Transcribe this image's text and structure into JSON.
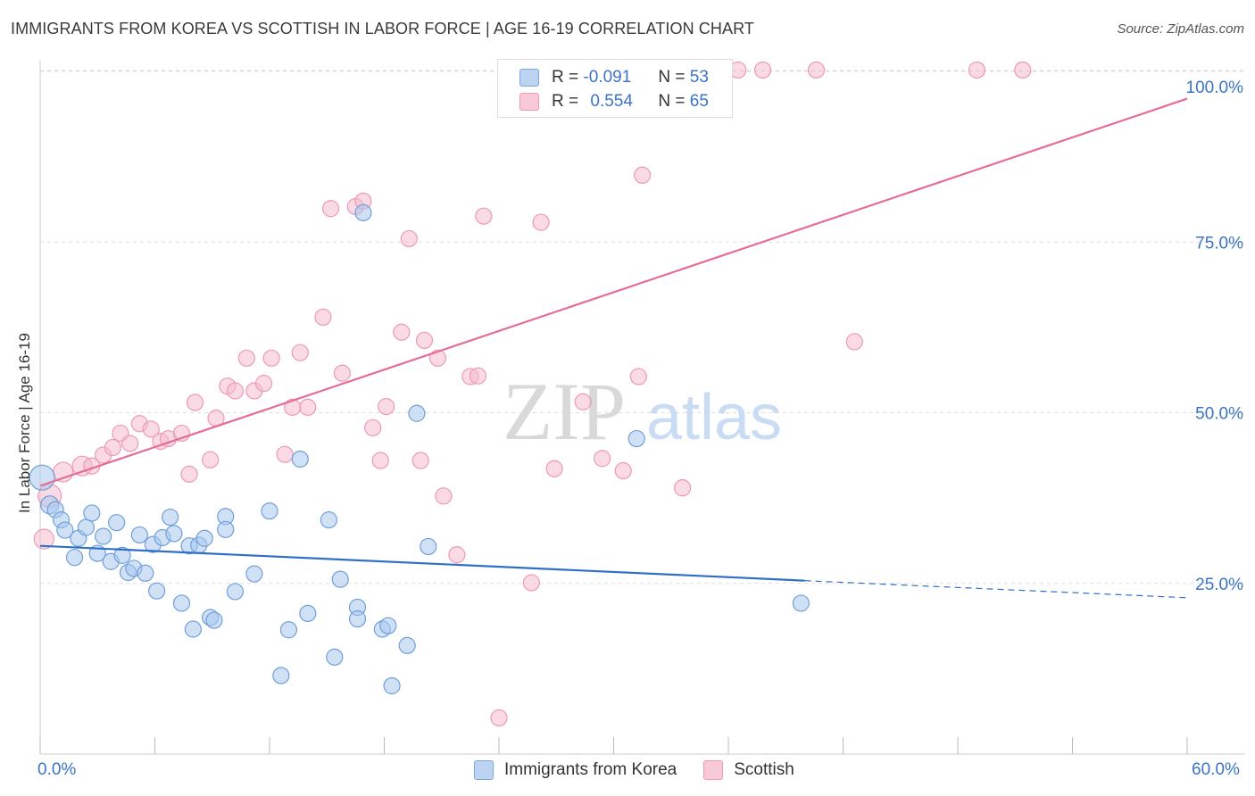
{
  "header": {
    "title": "IMMIGRANTS FROM KOREA VS SCOTTISH IN LABOR FORCE | AGE 16-19 CORRELATION CHART",
    "source": "Source: ZipAtlas.com"
  },
  "watermark": {
    "zip": "ZIP",
    "atlas": "atlas"
  },
  "legend": {
    "korea": {
      "r_label": "R =",
      "r_value": "-0.091",
      "n_label": "N =",
      "n_value": "53"
    },
    "scottish": {
      "r_label": "R =",
      "r_value": "0.554",
      "n_label": "N =",
      "n_value": "65"
    }
  },
  "colors": {
    "korea_fill": "#a9c8ef",
    "korea_stroke": "#6f9fd8",
    "korea_line": "#2f6fc9",
    "scottish_fill": "#f6bccd",
    "scottish_stroke": "#ec9ab4",
    "scottish_line": "#e56d94",
    "axis_text": "#3b74c7",
    "grid": "#dddddd"
  },
  "chart_data": {
    "type": "scatter",
    "title": "IMMIGRANTS FROM KOREA VS SCOTTISH IN LABOR FORCE | AGE 16-19 CORRELATION CHART",
    "xlabel": "",
    "ylabel": "In Labor Force | Age 16-19",
    "xlim": [
      0,
      60
    ],
    "ylim": [
      0,
      104
    ],
    "x_tick_labels": [
      "0.0%",
      "60.0%"
    ],
    "y_ticks": [
      25,
      50,
      75,
      100
    ],
    "y_tick_labels": [
      "25.0%",
      "50.0%",
      "75.0%",
      "100.0%"
    ],
    "grid": true,
    "legend_position": "top-center",
    "series": [
      {
        "name": "Immigrants from Korea",
        "legend_label": "Immigrants from Korea",
        "trend": {
          "x0": 0,
          "y0": 30.5,
          "x1": 40,
          "y1": 25.4,
          "dashed_to_x": 60,
          "dashed_to_y": 22.9
        },
        "points": [
          [
            0.1,
            40.5,
            14
          ],
          [
            0.5,
            36.5,
            10
          ],
          [
            0.8,
            35.8,
            9
          ],
          [
            1.1,
            34.3,
            9
          ],
          [
            1.3,
            32.8,
            9
          ],
          [
            1.8,
            28.8,
            9
          ],
          [
            2.0,
            31.6,
            9
          ],
          [
            2.4,
            33.2,
            9
          ],
          [
            2.7,
            35.3,
            9
          ],
          [
            3.0,
            29.4,
            9
          ],
          [
            3.3,
            31.9,
            9
          ],
          [
            3.7,
            28.2,
            9
          ],
          [
            4.0,
            33.9,
            9
          ],
          [
            4.3,
            29.1,
            9
          ],
          [
            4.6,
            26.6,
            9
          ],
          [
            4.9,
            27.2,
            9
          ],
          [
            5.2,
            32.1,
            9
          ],
          [
            5.5,
            26.5,
            9
          ],
          [
            5.9,
            30.7,
            9
          ],
          [
            6.1,
            23.9,
            9
          ],
          [
            6.4,
            31.7,
            9
          ],
          [
            6.8,
            34.7,
            9
          ],
          [
            7.0,
            32.3,
            9
          ],
          [
            7.4,
            22.1,
            9
          ],
          [
            7.8,
            30.5,
            9
          ],
          [
            8.0,
            18.3,
            9
          ],
          [
            8.3,
            30.6,
            9
          ],
          [
            8.6,
            31.6,
            9
          ],
          [
            8.9,
            20.0,
            9
          ],
          [
            9.1,
            19.6,
            9
          ],
          [
            9.7,
            34.8,
            9
          ],
          [
            9.7,
            32.9,
            9
          ],
          [
            10.2,
            23.8,
            9
          ],
          [
            11.2,
            26.4,
            9
          ],
          [
            12.0,
            35.6,
            9
          ],
          [
            12.6,
            11.5,
            9
          ],
          [
            13.0,
            18.2,
            9
          ],
          [
            13.6,
            43.2,
            9
          ],
          [
            14.0,
            20.6,
            9
          ],
          [
            15.1,
            34.3,
            9
          ],
          [
            15.4,
            14.2,
            9
          ],
          [
            15.7,
            25.6,
            9
          ],
          [
            16.6,
            21.5,
            9
          ],
          [
            16.6,
            19.8,
            9
          ],
          [
            16.9,
            79.3,
            9
          ],
          [
            17.9,
            18.3,
            9
          ],
          [
            18.2,
            18.8,
            9
          ],
          [
            18.4,
            10.0,
            9
          ],
          [
            19.2,
            15.9,
            9
          ],
          [
            19.7,
            49.9,
            9
          ],
          [
            20.3,
            30.4,
            9
          ],
          [
            31.2,
            46.2,
            9
          ],
          [
            39.8,
            22.1,
            9
          ]
        ]
      },
      {
        "name": "Scottish",
        "legend_label": "Scottish",
        "trend": {
          "x0": 0,
          "y0": 39.3,
          "x1": 60,
          "y1": 96.0
        },
        "points": [
          [
            0.2,
            31.5,
            11
          ],
          [
            0.5,
            37.8,
            13
          ],
          [
            1.2,
            41.3,
            11
          ],
          [
            2.2,
            42.2,
            11
          ],
          [
            2.7,
            42.2,
            9
          ],
          [
            3.3,
            43.8,
            9
          ],
          [
            3.8,
            44.9,
            9
          ],
          [
            4.2,
            47.0,
            9
          ],
          [
            4.7,
            45.5,
            9
          ],
          [
            5.2,
            48.4,
            9
          ],
          [
            5.8,
            47.6,
            9
          ],
          [
            6.3,
            45.8,
            9
          ],
          [
            6.7,
            46.2,
            9
          ],
          [
            7.4,
            47.0,
            9
          ],
          [
            7.8,
            41.0,
            9
          ],
          [
            8.1,
            51.5,
            9
          ],
          [
            8.9,
            43.1,
            9
          ],
          [
            9.2,
            49.2,
            9
          ],
          [
            9.8,
            53.9,
            9
          ],
          [
            10.2,
            53.2,
            9
          ],
          [
            10.8,
            58.0,
            9
          ],
          [
            11.2,
            53.2,
            9
          ],
          [
            11.7,
            54.3,
            9
          ],
          [
            12.1,
            58.0,
            9
          ],
          [
            12.8,
            43.9,
            9
          ],
          [
            13.2,
            50.8,
            9
          ],
          [
            13.6,
            58.8,
            9
          ],
          [
            14.0,
            50.8,
            9
          ],
          [
            14.8,
            64.0,
            9
          ],
          [
            15.2,
            79.9,
            9
          ],
          [
            15.8,
            55.8,
            9
          ],
          [
            16.5,
            80.2,
            9
          ],
          [
            16.9,
            81.0,
            9
          ],
          [
            17.4,
            47.8,
            9
          ],
          [
            17.8,
            43.0,
            9
          ],
          [
            18.1,
            50.9,
            9
          ],
          [
            18.9,
            61.8,
            9
          ],
          [
            19.3,
            75.5,
            9
          ],
          [
            19.9,
            43.0,
            9
          ],
          [
            20.1,
            60.6,
            9
          ],
          [
            20.8,
            58.0,
            9
          ],
          [
            21.1,
            37.8,
            9
          ],
          [
            21.8,
            29.2,
            9
          ],
          [
            22.5,
            55.3,
            9
          ],
          [
            22.9,
            55.4,
            9
          ],
          [
            23.2,
            78.8,
            9
          ],
          [
            24.0,
            5.3,
            9
          ],
          [
            24.6,
            100.2,
            9
          ],
          [
            25.7,
            25.1,
            9
          ],
          [
            26.2,
            77.9,
            9
          ],
          [
            26.9,
            41.8,
            9
          ],
          [
            28.3,
            100.2,
            9
          ],
          [
            28.4,
            51.6,
            9
          ],
          [
            29.4,
            43.3,
            9
          ],
          [
            30.0,
            100.2,
            9
          ],
          [
            30.5,
            41.5,
            9
          ],
          [
            31.3,
            55.3,
            9
          ],
          [
            31.5,
            84.8,
            9
          ],
          [
            33.6,
            39.0,
            9
          ],
          [
            36.5,
            100.2,
            9
          ],
          [
            37.8,
            100.2,
            9
          ],
          [
            40.6,
            100.2,
            9
          ],
          [
            42.6,
            60.4,
            9
          ],
          [
            49.0,
            100.2,
            9
          ],
          [
            51.4,
            100.2,
            9
          ]
        ]
      }
    ]
  },
  "bottom_legend": {
    "korea": "Immigrants from Korea",
    "scottish": "Scottish"
  },
  "axes": {
    "x_left": "0.0%",
    "x_right": "60.0%",
    "ylabel": "In Labor Force | Age 16-19"
  }
}
